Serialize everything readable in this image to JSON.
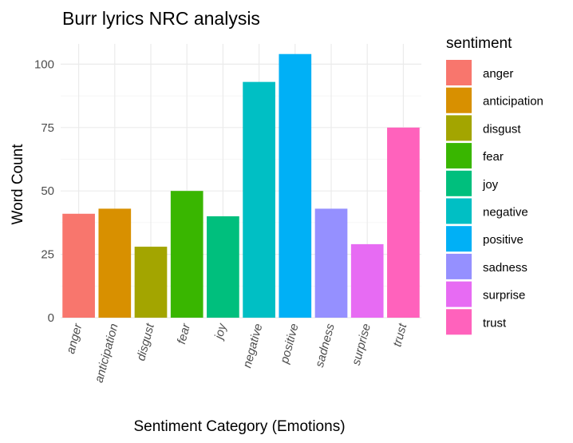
{
  "chart_data": {
    "type": "bar",
    "title": "Burr lyrics NRC analysis",
    "xlabel": "Sentiment Category (Emotions)",
    "ylabel": "Word Count",
    "categories": [
      "anger",
      "anticipation",
      "disgust",
      "fear",
      "joy",
      "negative",
      "positive",
      "sadness",
      "surprise",
      "trust"
    ],
    "values": [
      41,
      43,
      28,
      50,
      40,
      93,
      104,
      43,
      29,
      75
    ],
    "colors": [
      "#F8766D",
      "#D89000",
      "#A3A500",
      "#39B600",
      "#00BF7D",
      "#00BFC4",
      "#00B0F6",
      "#9590FF",
      "#E76BF3",
      "#FF62BC"
    ],
    "ylim": [
      0,
      108
    ],
    "yticks": [
      0,
      25,
      50,
      75,
      100
    ],
    "grid": true,
    "legend": {
      "title": "sentiment",
      "position": "right"
    }
  }
}
